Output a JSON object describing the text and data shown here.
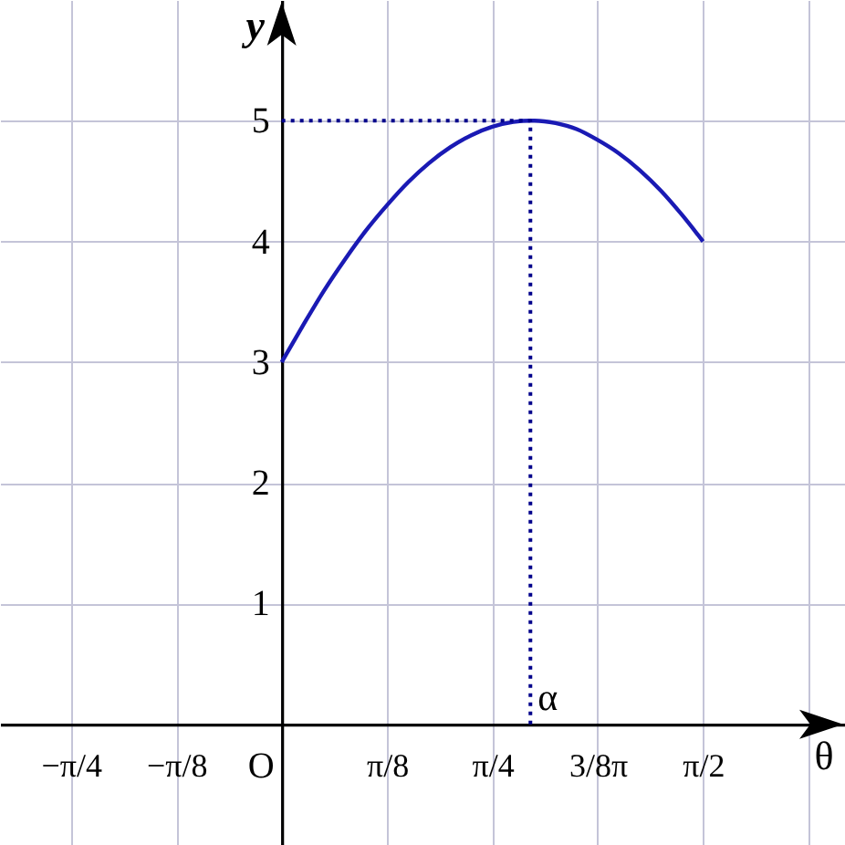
{
  "chart_data": {
    "type": "line",
    "xlabel": "θ",
    "ylabel": "y",
    "xlim": [
      -1.05,
      2.1
    ],
    "ylim": [
      -1,
      6
    ],
    "xticks": [
      {
        "value": -0.7854,
        "label": "−π/4"
      },
      {
        "value": -0.3927,
        "label": "−π/8"
      },
      {
        "value": 0,
        "label": null
      },
      {
        "value": 0.3927,
        "label": "π/8"
      },
      {
        "value": 0.7854,
        "label": "π/4"
      },
      {
        "value": 1.1781,
        "label": "3/8π"
      },
      {
        "value": 1.5708,
        "label": "π/2"
      },
      {
        "value": 1.9635,
        "label": null
      }
    ],
    "yticks": [
      {
        "value": -1,
        "label": null
      },
      {
        "value": 0,
        "label": null
      },
      1,
      2,
      3,
      4,
      5
    ],
    "grid": true,
    "series": [
      {
        "color": "#1a1ab4",
        "x": [
          0,
          0.0785,
          0.1571,
          0.2356,
          0.3142,
          0.3927,
          0.4712,
          0.5498,
          0.6283,
          0.7069,
          0.7854,
          0.8639,
          0.9273,
          0.9425,
          1.021,
          1.0996,
          1.1781,
          1.2566,
          1.3352,
          1.4137,
          1.4923,
          1.5708
        ],
        "values": [
          3,
          3.3,
          3.59,
          3.85,
          4.09,
          4.3,
          4.49,
          4.65,
          4.78,
          4.88,
          4.95,
          4.99,
          5,
          5,
          4.98,
          4.93,
          4.84,
          4.73,
          4.59,
          4.42,
          4.22,
          4
        ]
      },
      {
        "color": "#00008b",
        "line_style": "dotted",
        "x": [
          0,
          0.9273,
          0.9273
        ],
        "values": [
          5,
          5,
          0
        ]
      }
    ],
    "annotations": [
      "O",
      {
        "text": "α",
        "x": 0.9273,
        "y": 0
      }
    ]
  }
}
